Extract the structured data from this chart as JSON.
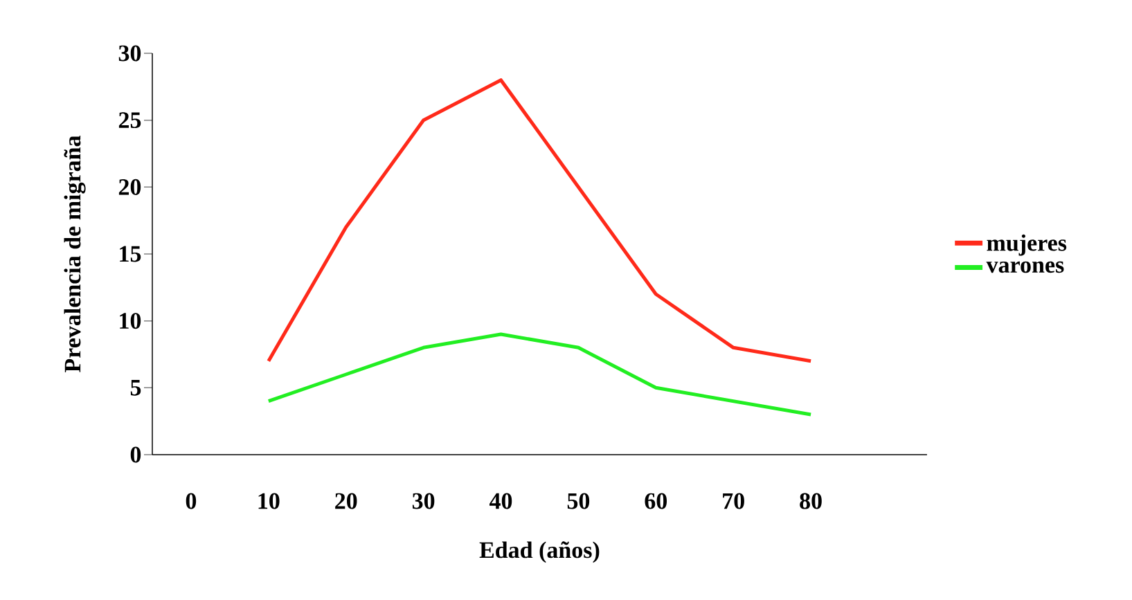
{
  "chart_data": {
    "type": "line",
    "xlabel": "Edad (años)",
    "ylabel": "Prevalencia de migraña",
    "categories": [
      "0",
      "10",
      "20",
      "30",
      "40",
      "50",
      "60",
      "70",
      "80",
      null
    ],
    "ylim": [
      0,
      30
    ],
    "yticks": [
      0,
      5,
      10,
      15,
      20,
      25,
      30
    ],
    "legend": "right",
    "grid": false,
    "marker": "none",
    "line_style": "solid",
    "series": [
      {
        "name": "mujeres",
        "color": "#ff2a1a",
        "values": [
          null,
          7,
          17,
          25,
          28,
          20,
          12,
          8,
          7,
          null
        ]
      },
      {
        "name": "varones",
        "color": "#22ee22",
        "values": [
          null,
          4,
          6,
          8,
          9,
          8,
          5,
          4,
          3,
          null
        ]
      }
    ]
  }
}
